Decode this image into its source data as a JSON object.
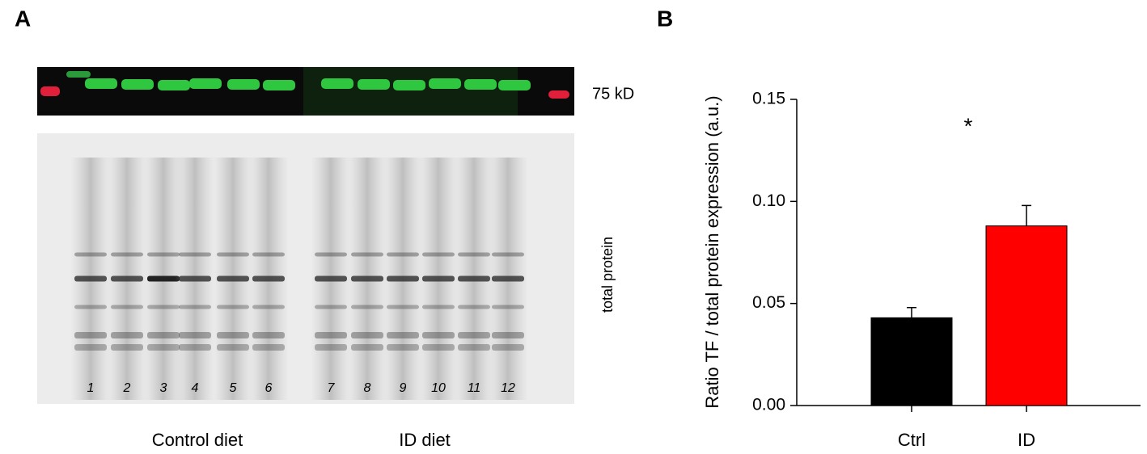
{
  "panel_a": {
    "label": "A",
    "blot_label": "75 kD",
    "stain_label": "total protein",
    "lanes": [
      "1",
      "2",
      "3",
      "4",
      "5",
      "6",
      "7",
      "8",
      "9",
      "10",
      "11",
      "12"
    ],
    "groups": [
      "Control diet",
      "ID diet"
    ]
  },
  "panel_b": {
    "label": "B"
  },
  "chart_data": {
    "type": "bar",
    "ylabel": "Ratio TF / total protein expression (a.u.)",
    "categories": [
      "Ctrl",
      "ID"
    ],
    "values": [
      0.043,
      0.088
    ],
    "errors": [
      0.005,
      0.01
    ],
    "colors": [
      "#000000",
      "#ff0000"
    ],
    "ylim": [
      0,
      0.15
    ],
    "yticks": [
      {
        "value": 0,
        "label": "0.00"
      },
      {
        "value": 0.05,
        "label": "0.05"
      },
      {
        "value": 0.1,
        "label": "0.10"
      },
      {
        "value": 0.15,
        "label": "0.15"
      }
    ],
    "annotation": "*"
  }
}
